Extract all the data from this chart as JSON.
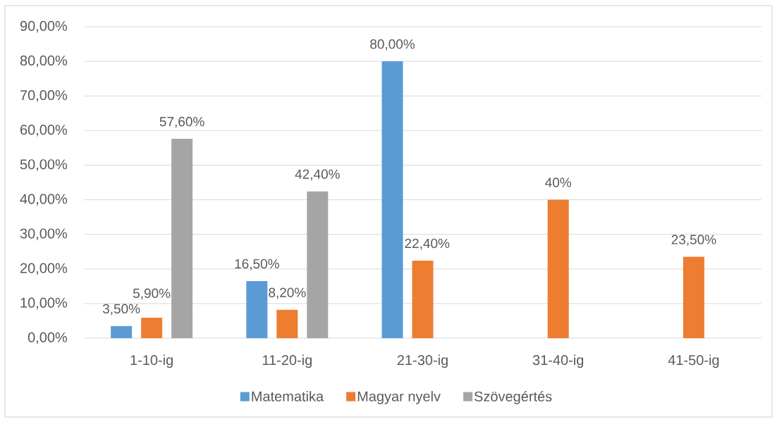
{
  "chart_data": {
    "type": "bar",
    "categories": [
      "1-10-ig",
      "11-20-ig",
      "21-30-ig",
      "31-40-ig",
      "41-50-ig"
    ],
    "series": [
      {
        "name": "Matematika",
        "color": "#5b9bd5",
        "values": [
          3.5,
          16.5,
          80,
          null,
          null
        ],
        "value_labels": [
          "3,50%",
          "16,50%",
          "80,00%",
          null,
          null
        ]
      },
      {
        "name": "Magyar nyelv",
        "color": "#ed7d31",
        "values": [
          5.9,
          8.2,
          22.4,
          40,
          23.5
        ],
        "value_labels": [
          "5,90%",
          "8,20%",
          "22,40%",
          "40%",
          "23,50%"
        ]
      },
      {
        "name": "Szövegértés",
        "color": "#a5a5a5",
        "values": [
          57.6,
          42.4,
          null,
          null,
          null
        ],
        "value_labels": [
          "57,60%",
          "42,40%",
          null,
          null,
          null
        ]
      }
    ],
    "ylim": [
      0,
      90
    ],
    "yticks": [
      {
        "value": 0,
        "label": "0,00%"
      },
      {
        "value": 10,
        "label": "10,00%"
      },
      {
        "value": 20,
        "label": "20,00%"
      },
      {
        "value": 30,
        "label": "30,00%"
      },
      {
        "value": 40,
        "label": "40,00%"
      },
      {
        "value": 50,
        "label": "50,00%"
      },
      {
        "value": 60,
        "label": "60,00%"
      },
      {
        "value": 70,
        "label": "70,00%"
      },
      {
        "value": 80,
        "label": "80,00%"
      },
      {
        "value": 90,
        "label": "90,00%"
      }
    ],
    "grid": "y",
    "legend": "bottom"
  }
}
